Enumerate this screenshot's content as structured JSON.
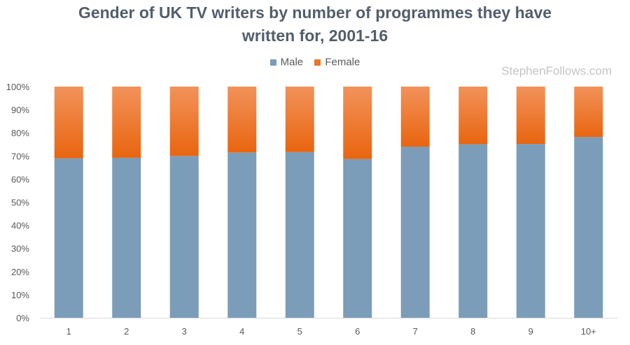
{
  "chart_data": {
    "type": "bar",
    "stacked": true,
    "title": "Gender of UK TV writers by number of programmes they have written for, 2001-16",
    "title_lines": [
      "Gender of UK TV writers by number of programmes they have",
      "written for, 2001-16"
    ],
    "xlabel": "",
    "ylabel": "",
    "categories": [
      "1",
      "2",
      "3",
      "4",
      "5",
      "6",
      "7",
      "8",
      "9",
      "10+"
    ],
    "series": [
      {
        "name": "Male",
        "color": "#7b9db9",
        "values": [
          69,
          69.2,
          70,
          71.5,
          71.7,
          68.7,
          74,
          75.1,
          75.2,
          78.2
        ]
      },
      {
        "name": "Female",
        "color": "#ee7326",
        "values": [
          31,
          30.8,
          30,
          28.5,
          28.3,
          31.3,
          26,
          24.9,
          24.8,
          21.8
        ]
      }
    ],
    "ylim": [
      0,
      100
    ],
    "yticks": [
      "0%",
      "10%",
      "20%",
      "30%",
      "40%",
      "50%",
      "60%",
      "70%",
      "80%",
      "90%",
      "100%"
    ],
    "legend_position": "top-center",
    "grid": false
  },
  "watermark": "StephenFollows.com"
}
